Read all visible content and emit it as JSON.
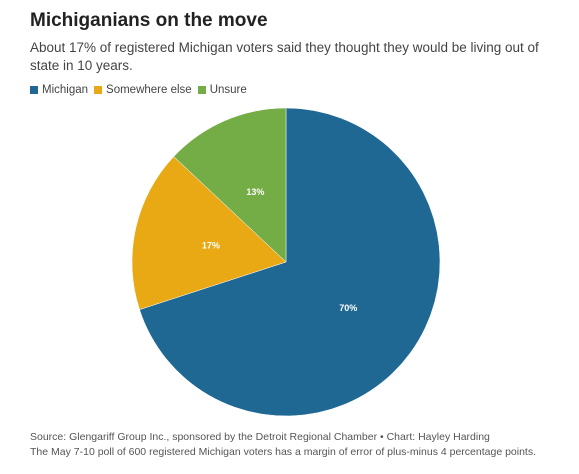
{
  "header": {
    "title": "Michiganians on the move",
    "subtitle": "About 17% of registered Michigan voters said they thought they would be living out of state in 10 years."
  },
  "legend": [
    {
      "label": "Michigan",
      "color": "#1f6893"
    },
    {
      "label": "Somewhere else",
      "color": "#e8a914"
    },
    {
      "label": "Unsure",
      "color": "#74ac45"
    }
  ],
  "footer": {
    "source": "Source: Glengariff Group Inc., sponsored by the Detroit Regional Chamber • Chart: Hayley Harding",
    "note": "The May 7-10 poll of 600 registered Michigan voters has a margin of error of plus-minus 4 percentage points."
  },
  "chart_data": {
    "type": "pie",
    "title": "Michiganians on the move",
    "categories": [
      "Michigan",
      "Somewhere else",
      "Unsure"
    ],
    "values": [
      70,
      17,
      13
    ],
    "labels": [
      "70%",
      "17%",
      "13%"
    ],
    "colors": [
      "#1f6893",
      "#e8a914",
      "#74ac45"
    ],
    "legend_position": "top-left"
  }
}
